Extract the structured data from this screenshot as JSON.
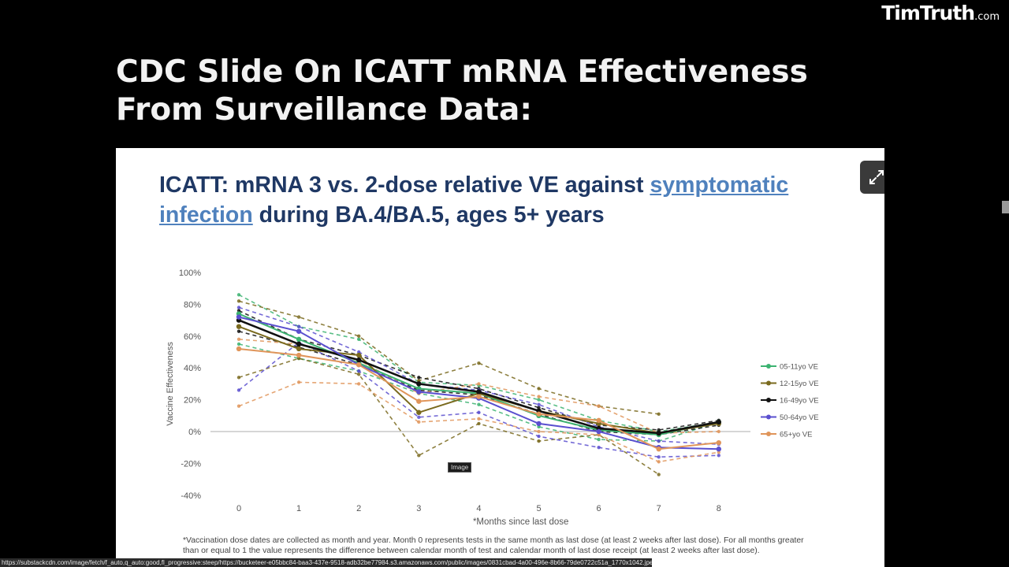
{
  "brand": {
    "name": "TimTruth",
    "suffix": ".com"
  },
  "page_title": "CDC Slide On ICATT mRNA Effectiveness From Surveillance Data:",
  "slide": {
    "title_prefix": "ICATT: mRNA 3 vs. 2-dose relative VE against ",
    "title_link": "symptomatic infection",
    "title_suffix": " during BA.4/BA.5, ages 5+ years",
    "footnote": "*Vaccination dose dates are collected as month and year. Month 0 represents tests in the same month as last dose (at least 2 weeks after last dose). For all months greater than or equal to 1 the value represents the difference between calendar month of test and calendar month of last dose receipt (at least 2 weeks after last dose)."
  },
  "tooltip": "Image",
  "status_url": "https://substackcdn.com/image/fetch/f_auto,q_auto:good,fl_progressive:steep/https://bucketeer-e05bbc84-baa3-437e-9518-adb32be77984.s3.amazonaws.com/public/images/0831cbad-4a00-496e-8b66-79de0722c51a_1770x1042.jpeg",
  "colors": {
    "s1": "#3cb371",
    "s2": "#7a6a1e",
    "s3": "#111111",
    "s4": "#5a4fcf",
    "s5": "#e0955a"
  },
  "chart_data": {
    "type": "line",
    "title": "",
    "xlabel": "*Months since last dose",
    "ylabel": "Vaccine Effectiveness",
    "x": [
      0,
      1,
      2,
      3,
      4,
      5,
      6,
      7,
      8
    ],
    "xticks": [
      "0",
      "1",
      "2",
      "3",
      "4",
      "5",
      "6",
      "7",
      "8"
    ],
    "ylim": [
      -40,
      100
    ],
    "yticks": [
      "-40%",
      "-20%",
      "0%",
      "20%",
      "40%",
      "60%",
      "80%",
      "100%"
    ],
    "grid": false,
    "legend_position": "right",
    "series": [
      {
        "name": "05-11yo VE",
        "color": "#3cb371",
        "values": [
          74,
          58,
          43,
          27,
          24,
          10,
          1,
          -2,
          6
        ]
      },
      {
        "name": "12-15yo VE",
        "color": "#7a6a1e",
        "values": [
          66,
          52,
          48,
          12,
          24,
          13,
          5,
          -1,
          5
        ]
      },
      {
        "name": "16-49yo VE",
        "color": "#111111",
        "values": [
          70,
          55,
          45,
          30,
          25,
          13,
          2,
          -1,
          6
        ]
      },
      {
        "name": "50-64yo VE",
        "color": "#5a4fcf",
        "values": [
          72,
          63,
          42,
          25,
          21,
          5,
          0,
          -10,
          -11
        ]
      },
      {
        "name": "65+yo VE",
        "color": "#e0955a",
        "values": [
          52,
          48,
          42,
          19,
          22,
          11,
          7,
          -11,
          -7
        ]
      }
    ],
    "ci_bounds": [
      {
        "color": "#3cb371",
        "values": [
          86,
          66,
          58,
          31,
          29,
          20,
          7,
          0,
          6
        ]
      },
      {
        "color": "#3cb371",
        "values": [
          55,
          46,
          38,
          24,
          17,
          3,
          -5,
          -6,
          6
        ]
      },
      {
        "color": "#7a6a1e",
        "values": [
          82,
          72,
          60,
          32,
          43,
          27,
          16,
          11,
          null
        ]
      },
      {
        "color": "#7a6a1e",
        "values": [
          34,
          46,
          36,
          -15,
          5,
          -6,
          -2,
          -27,
          null
        ]
      },
      {
        "color": "#111111",
        "values": [
          76,
          58,
          48,
          34,
          27,
          15,
          4,
          1,
          7
        ]
      },
      {
        "color": "#111111",
        "values": [
          63,
          53,
          42,
          26,
          23,
          11,
          0,
          -2,
          4
        ]
      },
      {
        "color": "#5a4fcf",
        "values": [
          78,
          66,
          50,
          30,
          26,
          17,
          3,
          -6,
          -8
        ]
      },
      {
        "color": "#5a4fcf",
        "values": [
          26,
          56,
          38,
          9,
          12,
          -3,
          -10,
          -16,
          -15
        ]
      },
      {
        "color": "#e0955a",
        "values": [
          58,
          55,
          45,
          24,
          30,
          22,
          16,
          -1,
          0
        ]
      },
      {
        "color": "#e0955a",
        "values": [
          16,
          31,
          30,
          6,
          8,
          0,
          -2,
          -19,
          -13
        ]
      }
    ]
  }
}
